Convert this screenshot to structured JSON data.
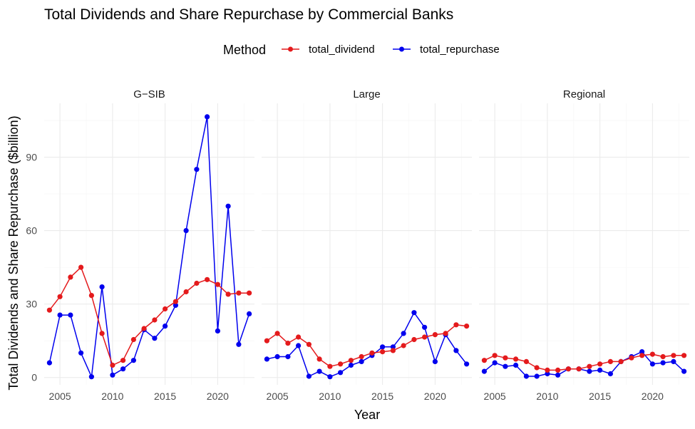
{
  "chart_data": {
    "type": "line",
    "title": "Total Dividends and Share Repurchase by Commercial Banks",
    "xlabel": "Year",
    "ylabel": "Total Dividends and Share Repurchase ($billion)",
    "legend": {
      "title": "Method",
      "position": "top",
      "entries": [
        "total_dividend",
        "total_repurchase"
      ]
    },
    "colors": {
      "total_dividend": "#e41a1c",
      "total_repurchase": "#0000ee"
    },
    "x_ticks": [
      2005,
      2010,
      2015,
      2020
    ],
    "y_ticks": [
      0,
      30,
      60,
      90
    ],
    "xlim": [
      2003.5,
      2023.5
    ],
    "ylim": [
      -3,
      112
    ],
    "grid": true,
    "x": [
      2004,
      2005,
      2006,
      2007,
      2008,
      2009,
      2010,
      2011,
      2012,
      2013,
      2014,
      2015,
      2016,
      2017,
      2018,
      2019,
      2020,
      2021,
      2022,
      2023
    ],
    "panels": [
      {
        "name": "G−SIB",
        "series": [
          {
            "name": "total_dividend",
            "values": [
              27.5,
              33,
              41,
              45,
              33.5,
              18,
              5,
              7,
              15.5,
              20,
              23.5,
              28,
              31,
              35,
              38.5,
              40,
              38,
              34,
              34.5,
              34.5
            ]
          },
          {
            "name": "total_repurchase",
            "values": [
              6,
              25.5,
              25.5,
              10,
              0.3,
              37,
              1,
              3.5,
              7,
              19.5,
              16,
              21,
              29.5,
              60,
              85,
              106.5,
              19,
              70,
              13.5,
              26
            ]
          }
        ]
      },
      {
        "name": "Large",
        "series": [
          {
            "name": "total_dividend",
            "values": [
              15,
              18,
              14,
              16.5,
              13.5,
              7.5,
              4.5,
              5.5,
              7,
              8.5,
              10,
              10.5,
              11,
              13,
              15.5,
              16.5,
              17.5,
              18,
              21.5,
              21
            ]
          },
          {
            "name": "total_repurchase",
            "values": [
              7.5,
              8.5,
              8.5,
              13,
              0.5,
              2.5,
              0.3,
              2,
              5,
              6.5,
              9,
              12.5,
              12.5,
              18,
              26.5,
              20.5,
              6.5,
              17.5,
              11,
              5.5
            ]
          }
        ]
      },
      {
        "name": "Regional",
        "series": [
          {
            "name": "total_dividend",
            "values": [
              7,
              9,
              8,
              7.5,
              6.5,
              4,
              3,
              3,
              3.5,
              3.5,
              4.5,
              5.5,
              6.5,
              6.5,
              8,
              9,
              9.5,
              8.5,
              9,
              9
            ]
          },
          {
            "name": "total_repurchase",
            "values": [
              2.5,
              6,
              4.5,
              5,
              0.5,
              0.5,
              1.5,
              1,
              3.5,
              3.5,
              2.5,
              3,
              1.5,
              6.5,
              8.5,
              10.5,
              5.5,
              6,
              6.5,
              2.5
            ]
          }
        ]
      }
    ]
  }
}
